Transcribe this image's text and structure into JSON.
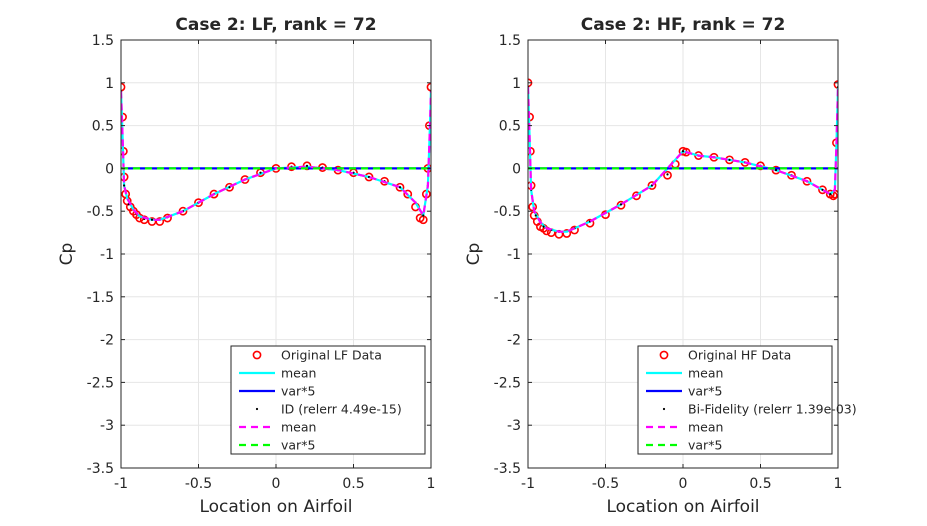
{
  "chart_data": [
    {
      "type": "scatter",
      "title": "Case 2: LF, rank = 72",
      "xlabel": "Location on Airfoil",
      "ylabel": "Cp",
      "xlim": [
        -1,
        1
      ],
      "ylim": [
        -3.5,
        1.5
      ],
      "xticks": [
        "-1",
        "-0.5",
        "0",
        "0.5",
        "1"
      ],
      "yticks": [
        "1.5",
        "1",
        "0.5",
        "0",
        "-0.5",
        "-1",
        "-1.5",
        "-2",
        "-2.5",
        "-3",
        "-3.5"
      ],
      "grid": true,
      "legend_position": "bottom-right",
      "legend": [
        {
          "label": "Original LF Data",
          "style": "circle",
          "color": "#ff0000"
        },
        {
          "label": "mean",
          "style": "solid",
          "color": "#00ffff"
        },
        {
          "label": "var*5",
          "style": "solid",
          "color": "#0000ff"
        },
        {
          "label": "ID (relerr 4.49e-15)",
          "style": "dot",
          "color": "#000000"
        },
        {
          "label": "mean",
          "style": "dashed",
          "color": "#ff00ff"
        },
        {
          "label": "var*5",
          "style": "dashed",
          "color": "#00ff00"
        }
      ],
      "series": [
        {
          "name": "Original LF Data",
          "marker": "circle",
          "color": "#ff0000",
          "x": [
            -1,
            -0.99,
            -0.985,
            -0.98,
            -0.97,
            -0.96,
            -0.94,
            -0.92,
            -0.9,
            -0.88,
            -0.85,
            -0.8,
            -0.75,
            -0.7,
            -0.6,
            -0.5,
            -0.4,
            -0.3,
            -0.2,
            -0.1,
            0,
            0.1,
            0.2,
            0.3,
            0.4,
            0.5,
            0.6,
            0.7,
            0.8,
            0.85,
            0.9,
            0.93,
            0.95,
            0.97,
            0.98,
            0.99,
            1
          ],
          "y": [
            0.95,
            0.6,
            0.2,
            -0.1,
            -0.3,
            -0.38,
            -0.45,
            -0.5,
            -0.54,
            -0.58,
            -0.6,
            -0.62,
            -0.62,
            -0.58,
            -0.5,
            -0.4,
            -0.3,
            -0.22,
            -0.13,
            -0.05,
            0,
            0.02,
            0.03,
            0.01,
            -0.02,
            -0.05,
            -0.1,
            -0.15,
            -0.22,
            -0.3,
            -0.45,
            -0.58,
            -0.6,
            -0.3,
            0,
            0.5,
            0.95
          ]
        },
        {
          "name": "mean",
          "line": "solid",
          "color": "#00ffff",
          "x": [
            -1,
            -0.99,
            -0.98,
            -0.96,
            -0.92,
            -0.88,
            -0.8,
            -0.75,
            -0.6,
            -0.4,
            -0.2,
            0,
            0.2,
            0.4,
            0.6,
            0.8,
            0.9,
            0.95,
            0.98,
            0.99,
            1
          ],
          "y": [
            0.9,
            0.4,
            -0.2,
            -0.35,
            -0.48,
            -0.56,
            -0.6,
            -0.6,
            -0.5,
            -0.3,
            -0.13,
            0,
            0.02,
            -0.02,
            -0.1,
            -0.22,
            -0.4,
            -0.55,
            -0.2,
            0.3,
            0.9
          ]
        },
        {
          "name": "var*5",
          "line": "solid",
          "color": "#0000ff",
          "x": [
            -1,
            1
          ],
          "y": [
            0,
            0
          ]
        },
        {
          "name": "ID (relerr 4.49e-15)",
          "marker": "dot",
          "color": "#000000",
          "x": [
            -1,
            -0.98,
            -0.95,
            -0.9,
            -0.85,
            -0.8,
            -0.7,
            -0.6,
            -0.5,
            -0.4,
            -0.3,
            -0.2,
            -0.1,
            0,
            0.1,
            0.2,
            0.3,
            0.4,
            0.5,
            0.6,
            0.7,
            0.8,
            0.9,
            0.95,
            0.98,
            1
          ],
          "y": [
            0.9,
            -0.2,
            -0.42,
            -0.53,
            -0.59,
            -0.6,
            -0.57,
            -0.5,
            -0.4,
            -0.3,
            -0.22,
            -0.13,
            -0.05,
            0,
            0.02,
            0.03,
            0.01,
            -0.02,
            -0.05,
            -0.1,
            -0.15,
            -0.22,
            -0.4,
            -0.55,
            -0.2,
            0.9
          ]
        },
        {
          "name": "mean",
          "line": "dashed",
          "color": "#ff00ff",
          "x": [
            -1,
            -0.99,
            -0.98,
            -0.96,
            -0.92,
            -0.88,
            -0.8,
            -0.75,
            -0.6,
            -0.4,
            -0.2,
            0,
            0.2,
            0.4,
            0.6,
            0.8,
            0.9,
            0.95,
            0.98,
            0.99,
            1
          ],
          "y": [
            0.9,
            0.4,
            -0.2,
            -0.35,
            -0.48,
            -0.56,
            -0.6,
            -0.6,
            -0.5,
            -0.3,
            -0.13,
            0,
            0.02,
            -0.02,
            -0.1,
            -0.22,
            -0.4,
            -0.55,
            -0.2,
            0.3,
            0.9
          ]
        },
        {
          "name": "var*5",
          "line": "dashed",
          "color": "#00ff00",
          "x": [
            -1,
            1
          ],
          "y": [
            0,
            0
          ]
        }
      ]
    },
    {
      "type": "scatter",
      "title": "Case 2: HF, rank = 72",
      "xlabel": "Location on Airfoil",
      "ylabel": "Cp",
      "xlim": [
        -1,
        1
      ],
      "ylim": [
        -3.5,
        1.5
      ],
      "xticks": [
        "-1",
        "-0.5",
        "0",
        "0.5",
        "1"
      ],
      "yticks": [
        "1.5",
        "1",
        "0.5",
        "0",
        "-0.5",
        "-1",
        "-1.5",
        "-2",
        "-2.5",
        "-3",
        "-3.5"
      ],
      "grid": true,
      "legend_position": "bottom-right",
      "legend": [
        {
          "label": "Original HF Data",
          "style": "circle",
          "color": "#ff0000"
        },
        {
          "label": "mean",
          "style": "solid",
          "color": "#00ffff"
        },
        {
          "label": "var*5",
          "style": "solid",
          "color": "#0000ff"
        },
        {
          "label": "Bi-Fidelity (relerr 1.39e-03)",
          "style": "dot",
          "color": "#000000"
        },
        {
          "label": "mean",
          "style": "dashed",
          "color": "#ff00ff"
        },
        {
          "label": "var*5",
          "style": "dashed",
          "color": "#00ff00"
        }
      ],
      "series": [
        {
          "name": "Original HF Data",
          "marker": "circle",
          "color": "#ff0000",
          "x": [
            -1,
            -0.99,
            -0.985,
            -0.98,
            -0.97,
            -0.96,
            -0.94,
            -0.92,
            -0.9,
            -0.88,
            -0.85,
            -0.8,
            -0.75,
            -0.7,
            -0.6,
            -0.5,
            -0.4,
            -0.3,
            -0.2,
            -0.1,
            -0.05,
            0,
            0.02,
            0.1,
            0.2,
            0.3,
            0.4,
            0.5,
            0.6,
            0.7,
            0.8,
            0.9,
            0.95,
            0.97,
            0.98,
            0.99,
            1
          ],
          "y": [
            1,
            0.6,
            0.2,
            -0.2,
            -0.45,
            -0.55,
            -0.62,
            -0.68,
            -0.7,
            -0.73,
            -0.75,
            -0.77,
            -0.76,
            -0.72,
            -0.64,
            -0.54,
            -0.43,
            -0.32,
            -0.2,
            -0.08,
            0.05,
            0.2,
            0.19,
            0.15,
            0.13,
            0.1,
            0.07,
            0.03,
            -0.02,
            -0.08,
            -0.15,
            -0.25,
            -0.3,
            -0.32,
            -0.3,
            0.3,
            0.98
          ]
        },
        {
          "name": "mean",
          "line": "solid",
          "color": "#00ffff",
          "x": [
            -1,
            -0.99,
            -0.98,
            -0.96,
            -0.92,
            -0.88,
            -0.8,
            -0.75,
            -0.6,
            -0.4,
            -0.2,
            0,
            0.1,
            0.2,
            0.4,
            0.6,
            0.8,
            0.9,
            0.95,
            0.98,
            0.99,
            1
          ],
          "y": [
            0.95,
            0.4,
            -0.25,
            -0.5,
            -0.63,
            -0.7,
            -0.74,
            -0.74,
            -0.62,
            -0.42,
            -0.2,
            0.2,
            0.15,
            0.13,
            0.07,
            -0.02,
            -0.15,
            -0.25,
            -0.3,
            -0.25,
            0.3,
            0.95
          ]
        },
        {
          "name": "var*5",
          "line": "solid",
          "color": "#0000ff",
          "x": [
            -1,
            1
          ],
          "y": [
            0,
            0
          ]
        },
        {
          "name": "Bi-Fidelity (relerr 1.39e-03)",
          "marker": "dot",
          "color": "#000000",
          "x": [
            -1,
            -0.98,
            -0.95,
            -0.9,
            -0.85,
            -0.8,
            -0.7,
            -0.6,
            -0.5,
            -0.4,
            -0.3,
            -0.2,
            -0.1,
            0,
            0.1,
            0.2,
            0.3,
            0.4,
            0.5,
            0.6,
            0.7,
            0.8,
            0.9,
            0.95,
            0.98,
            1
          ],
          "y": [
            0.95,
            -0.25,
            -0.55,
            -0.68,
            -0.72,
            -0.74,
            -0.7,
            -0.62,
            -0.52,
            -0.42,
            -0.31,
            -0.2,
            -0.07,
            0.2,
            0.15,
            0.13,
            0.1,
            0.07,
            0.03,
            -0.02,
            -0.08,
            -0.15,
            -0.25,
            -0.3,
            -0.25,
            0.95
          ]
        },
        {
          "name": "mean",
          "line": "dashed",
          "color": "#ff00ff",
          "x": [
            -1,
            -0.99,
            -0.98,
            -0.96,
            -0.92,
            -0.88,
            -0.8,
            -0.75,
            -0.6,
            -0.4,
            -0.2,
            0,
            0.1,
            0.2,
            0.4,
            0.6,
            0.8,
            0.9,
            0.95,
            0.98,
            0.99,
            1
          ],
          "y": [
            0.95,
            0.4,
            -0.25,
            -0.5,
            -0.63,
            -0.7,
            -0.74,
            -0.74,
            -0.62,
            -0.42,
            -0.2,
            0.2,
            0.15,
            0.13,
            0.07,
            -0.02,
            -0.15,
            -0.25,
            -0.3,
            -0.25,
            0.3,
            0.95
          ]
        },
        {
          "name": "var*5",
          "line": "dashed",
          "color": "#00ff00",
          "x": [
            -1,
            1
          ],
          "y": [
            0,
            0
          ]
        }
      ]
    }
  ]
}
